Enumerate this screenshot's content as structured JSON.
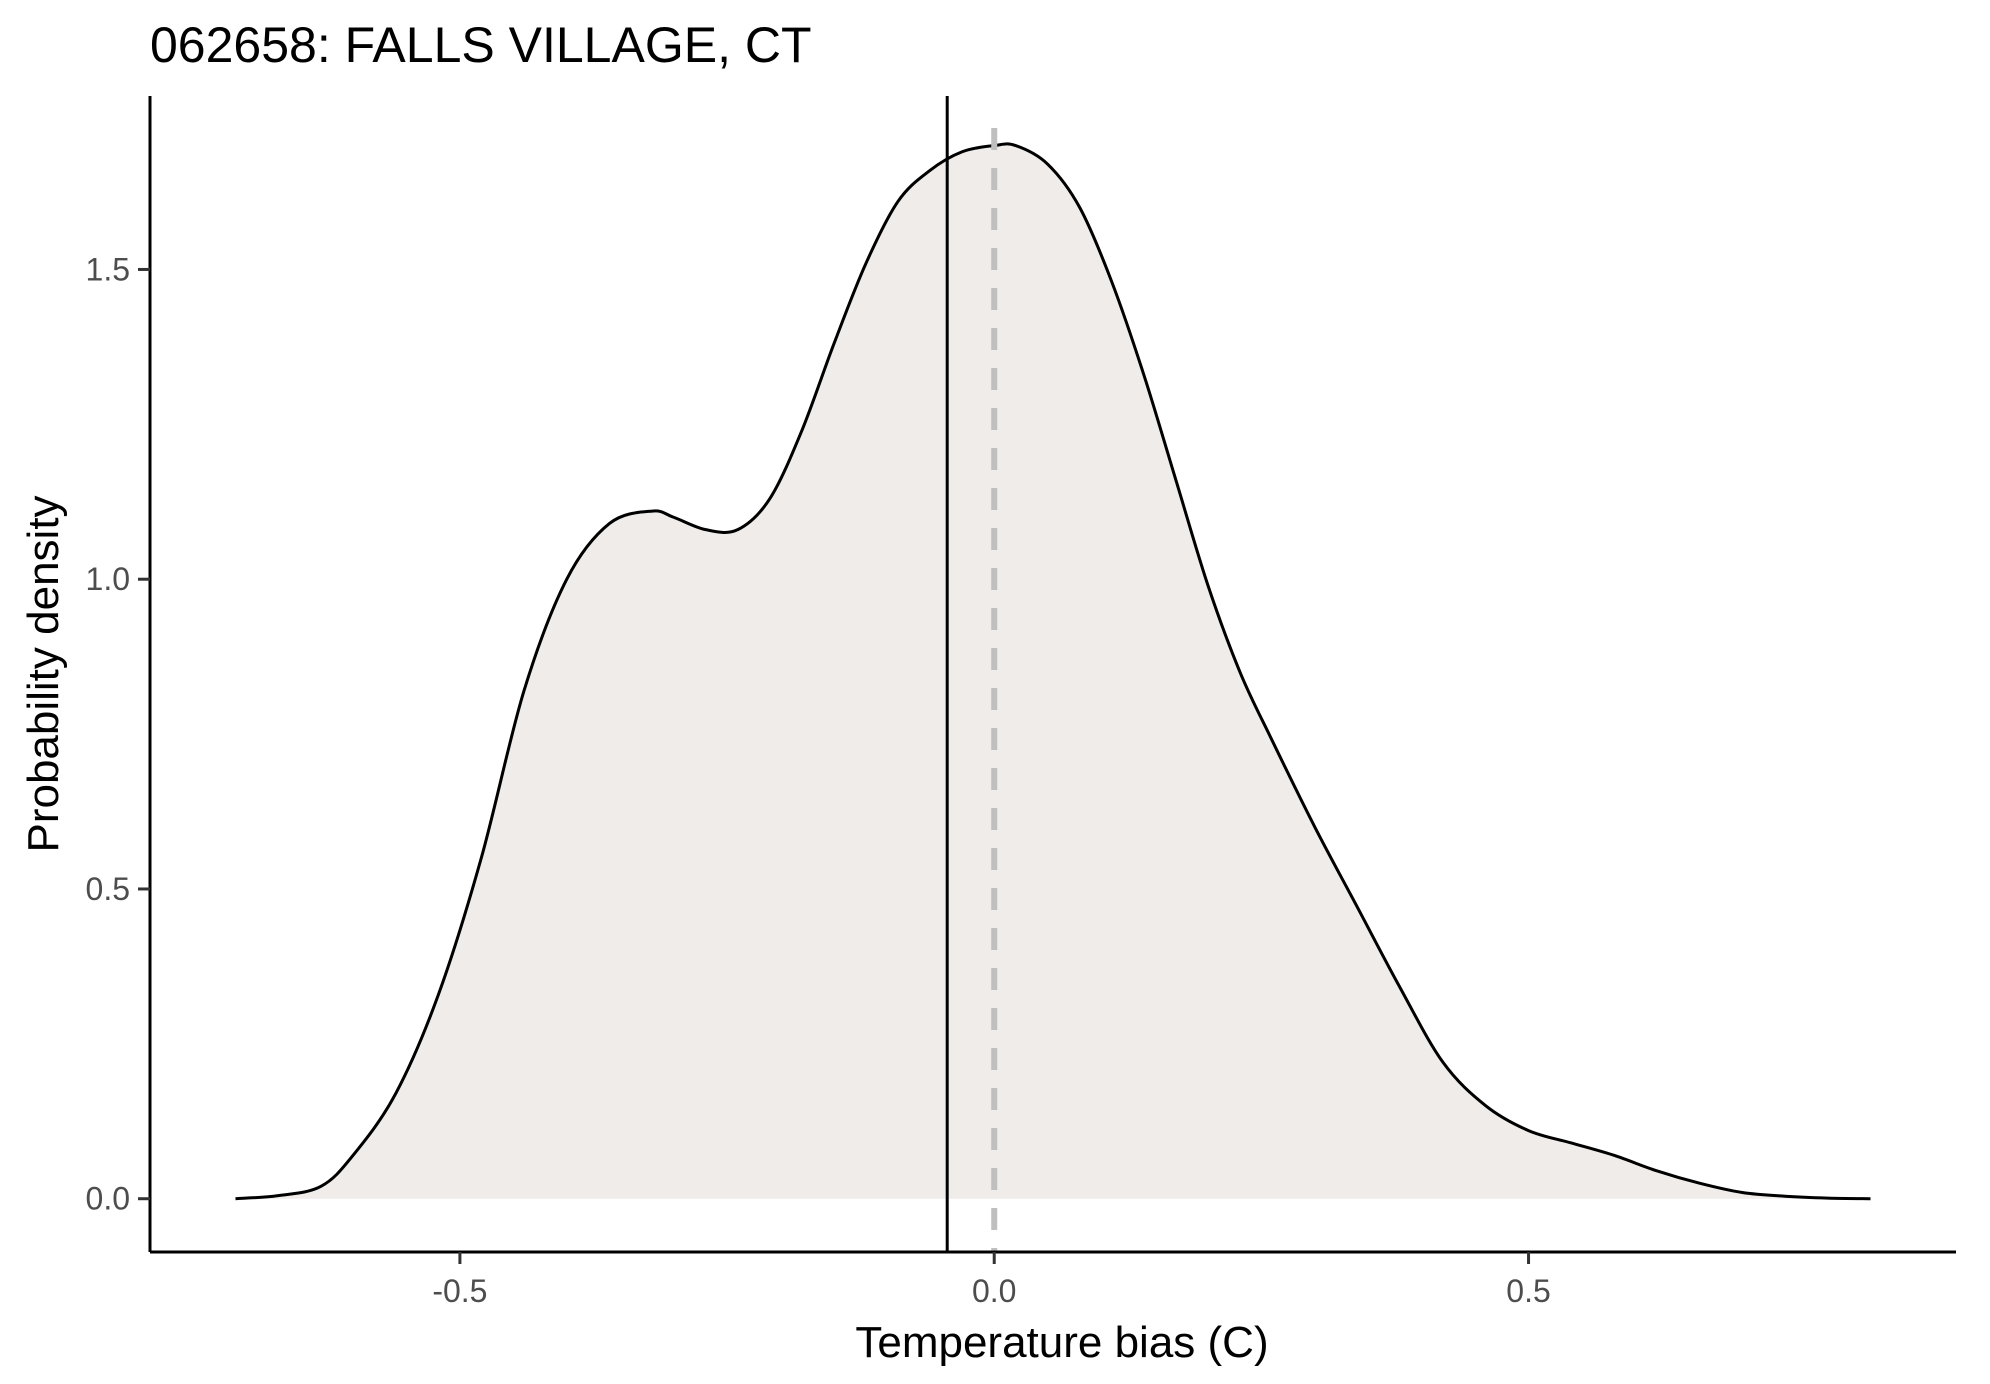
{
  "chart_data": {
    "type": "area",
    "title": "062658: FALLS VILLAGE, CT",
    "xlabel": "Temperature bias (C)",
    "ylabel": "Probability density",
    "xlim": [
      -0.79,
      0.9
    ],
    "ylim": [
      -0.086,
      1.78
    ],
    "x_ticks": [
      -0.5,
      0.0,
      0.5
    ],
    "x_tick_labels": [
      "-0.5",
      "0.0",
      "0.5"
    ],
    "y_ticks": [
      0.0,
      0.5,
      1.0,
      1.5
    ],
    "y_tick_labels": [
      "0.0",
      "0.5",
      "1.0",
      "1.5"
    ],
    "grid": false,
    "legend": "none",
    "fill_color": "#efecea",
    "line_color": "#000000",
    "reference_lines": [
      {
        "kind": "solid",
        "x": -0.044,
        "color": "#000000"
      },
      {
        "kind": "dashed",
        "x": 0.0,
        "color": "#bfbfbf"
      }
    ],
    "series": [
      {
        "x": [
          -0.71,
          -0.67,
          -0.63,
          -0.6,
          -0.56,
          -0.52,
          -0.48,
          -0.44,
          -0.4,
          -0.36,
          -0.32,
          -0.3,
          -0.27,
          -0.24,
          -0.21,
          -0.18,
          -0.15,
          -0.12,
          -0.09,
          -0.06,
          -0.03,
          0.0,
          0.02,
          0.05,
          0.08,
          0.11,
          0.14,
          0.17,
          0.2,
          0.23,
          0.26,
          0.3,
          0.34,
          0.38,
          0.42,
          0.46,
          0.5,
          0.54,
          0.58,
          0.62,
          0.66,
          0.7,
          0.74,
          0.78,
          0.82
        ],
        "y": [
          0.0,
          0.005,
          0.02,
          0.07,
          0.17,
          0.33,
          0.55,
          0.82,
          1.0,
          1.09,
          1.11,
          1.1,
          1.08,
          1.08,
          1.13,
          1.24,
          1.38,
          1.51,
          1.61,
          1.66,
          1.69,
          1.7,
          1.7,
          1.67,
          1.6,
          1.48,
          1.33,
          1.16,
          0.99,
          0.85,
          0.74,
          0.6,
          0.47,
          0.34,
          0.22,
          0.15,
          0.11,
          0.09,
          0.07,
          0.045,
          0.025,
          0.01,
          0.004,
          0.001,
          0.0
        ]
      }
    ]
  }
}
